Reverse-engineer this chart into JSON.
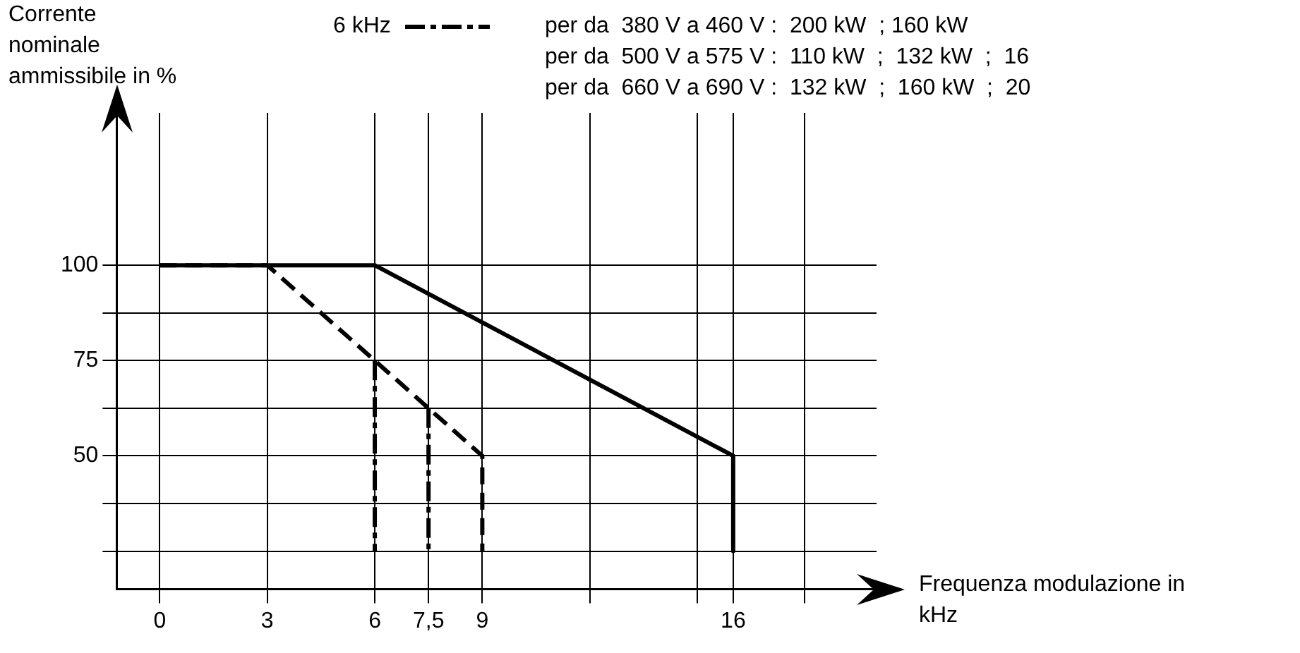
{
  "chart_data": {
    "type": "line",
    "ylabel": "Corrente nominale ammissibile in %",
    "xlabel": "Frequenza modulazione in kHz",
    "annotations": [
      "per da  380 V a 460 V :  200 kW  ; 160 kW",
      "per da  500 V a 575 V :  110 kW  ;  132 kW  ;  16",
      "per da  660 V a 690 V :  132 kW  ;  160 kW  ;  20"
    ],
    "xlim": [
      -1.2,
      20
    ],
    "xticks": [
      0,
      3,
      6,
      {
        "value": 7.5,
        "label": "7,5"
      },
      9,
      {
        "value": 12,
        "label": null
      },
      {
        "value": 15,
        "label": null
      },
      16,
      {
        "value": 18,
        "label": null
      }
    ],
    "ylim": [
      15,
      140
    ],
    "yticks": [
      {
        "value": 25,
        "label": null
      },
      {
        "value": 37.5,
        "label": null
      },
      50,
      {
        "value": 62.5,
        "label": null
      },
      75,
      {
        "value": 87.5,
        "label": null
      },
      100
    ],
    "grid": true,
    "legend": "top",
    "marker": "none",
    "series": [
      {
        "color": "#000000",
        "line_style": "solid",
        "x": [
          0,
          6,
          16,
          16
        ],
        "values": [
          100,
          100,
          50,
          25
        ]
      },
      {
        "color": "#000000",
        "line_style": "dashed",
        "x": [
          0,
          3,
          9,
          9
        ],
        "values": [
          100,
          100,
          50,
          25
        ]
      },
      {
        "name": "6 kHz",
        "color": "#000000",
        "line_style": "dotted",
        "x": [
          6,
          6
        ],
        "values": [
          75,
          25
        ]
      },
      {
        "color": "#000000",
        "line_style": "dotted",
        "x": [
          7.5,
          7.5
        ],
        "values": [
          62.5,
          25
        ]
      }
    ]
  }
}
